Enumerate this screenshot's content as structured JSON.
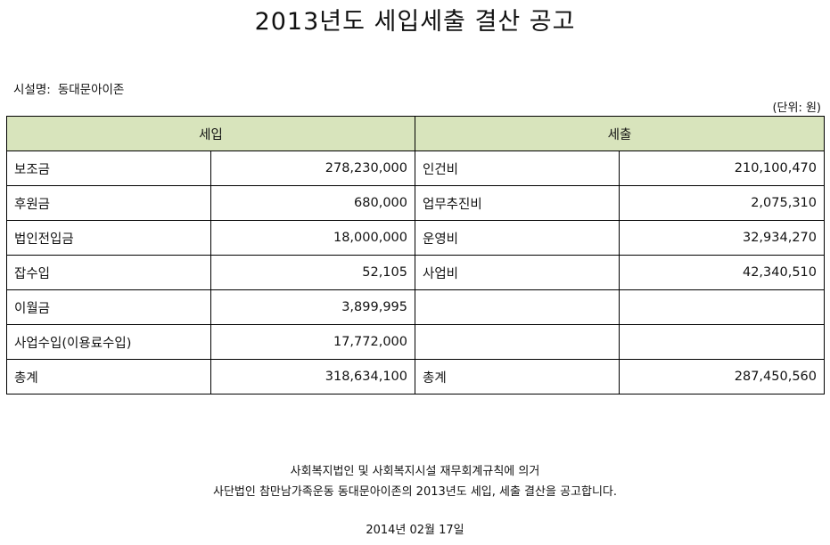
{
  "title": "2013년도 세입세출 결산 공고",
  "facility": {
    "label": "시설명:",
    "name": "동대문아이존"
  },
  "unit_note": "(단위: 원)",
  "table": {
    "headers": {
      "income": "세입",
      "expense": "세출"
    },
    "rows": [
      {
        "income_label": "보조금",
        "income_amount": "278,230,000",
        "expense_label": "인건비",
        "expense_amount": "210,100,470"
      },
      {
        "income_label": "후원금",
        "income_amount": "680,000",
        "expense_label": "업무추진비",
        "expense_amount": "2,075,310"
      },
      {
        "income_label": "법인전입금",
        "income_amount": "18,000,000",
        "expense_label": "운영비",
        "expense_amount": "32,934,270"
      },
      {
        "income_label": "잡수입",
        "income_amount": "52,105",
        "expense_label": "사업비",
        "expense_amount": "42,340,510"
      },
      {
        "income_label": "이월금",
        "income_amount": "3,899,995",
        "expense_label": "",
        "expense_amount": ""
      },
      {
        "income_label": "사업수입(이용료수입)",
        "income_amount": "17,772,000",
        "expense_label": "",
        "expense_amount": ""
      },
      {
        "income_label": "총계",
        "income_amount": "318,634,100",
        "expense_label": "총계",
        "expense_amount": "287,450,560"
      }
    ]
  },
  "footer": {
    "line1": "사회복지법인 및 사회복지시설 재무회계규칙에 의거",
    "line2": "사단법인 참만남가족운동 동대문아이존의 2013년도 세입, 세출 결산을 공고합니다.",
    "date": "2014년 02월 17일"
  },
  "colors": {
    "header_bg": "#d8e4bc",
    "border": "#000000"
  }
}
